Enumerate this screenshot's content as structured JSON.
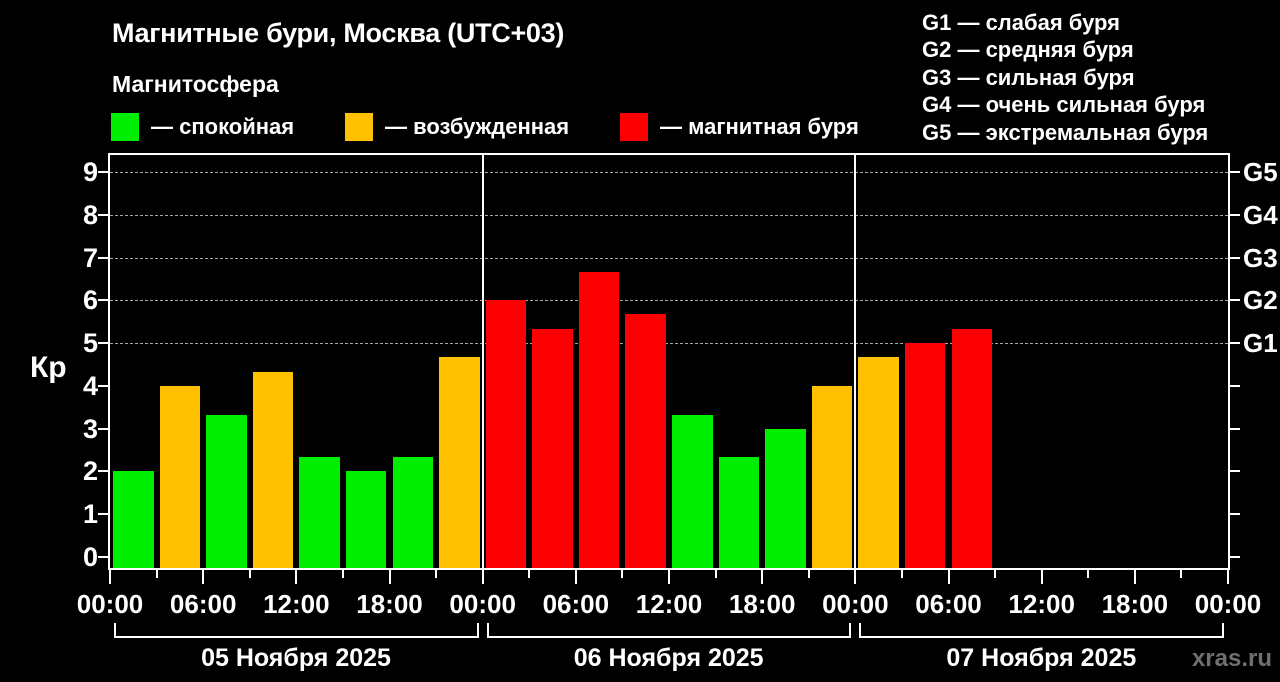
{
  "title": "Магнитные бури, Москва (UTC+03)",
  "subtitle": "Магнитосфера",
  "watermark": "xras.ru",
  "colors": {
    "quiet": "#00ef00",
    "unsettled": "#ffc000",
    "storm": "#fa0000",
    "axis": "#ffffff",
    "grid": "#a9a9a9",
    "watermark": "#6f6f6f",
    "background": "#000000"
  },
  "legend": [
    {
      "level": "quiet",
      "label": "— спокойная"
    },
    {
      "level": "unsettled",
      "label": "— возбужденная"
    },
    {
      "level": "storm",
      "label": "— магнитная буря"
    }
  ],
  "storm_scale": [
    {
      "label": "G1 — слабая буря"
    },
    {
      "label": "G2 — средняя буря"
    },
    {
      "label": "G3 — сильная буря"
    },
    {
      "label": "G4 — очень сильная буря"
    },
    {
      "label": "G5 — экстремальная буря"
    }
  ],
  "chart_data": {
    "type": "bar",
    "title": "Магнитные бури, Москва (UTC+03)",
    "ylabel": "Кр",
    "ylim": [
      0,
      9
    ],
    "yticks": [
      0,
      1,
      2,
      3,
      4,
      5,
      6,
      7,
      8,
      9
    ],
    "grid_levels": [
      5,
      6,
      7,
      8,
      9
    ],
    "grid": "dashed horizontal lines only at Kp 5-9",
    "legend_position": "top",
    "right_axis_labels": [
      {
        "kp": 5,
        "label": "G1"
      },
      {
        "kp": 6,
        "label": "G2"
      },
      {
        "kp": 7,
        "label": "G3"
      },
      {
        "kp": 8,
        "label": "G4"
      },
      {
        "kp": 9,
        "label": "G5"
      }
    ],
    "x_tick_labels": [
      "00:00",
      "06:00",
      "12:00",
      "18:00",
      "00:00",
      "06:00",
      "12:00",
      "18:00",
      "00:00",
      "06:00",
      "12:00",
      "18:00",
      "00:00"
    ],
    "hours_per_bar": 3,
    "slots_per_day": 8,
    "days": [
      {
        "date": "05 Ноября 2025",
        "bars": [
          {
            "kp": 2.0,
            "level": "quiet"
          },
          {
            "kp": 4.0,
            "level": "unsettled"
          },
          {
            "kp": 3.33,
            "level": "quiet"
          },
          {
            "kp": 4.33,
            "level": "unsettled"
          },
          {
            "kp": 2.33,
            "level": "quiet"
          },
          {
            "kp": 2.0,
            "level": "quiet"
          },
          {
            "kp": 2.33,
            "level": "quiet"
          },
          {
            "kp": 4.67,
            "level": "unsettled"
          }
        ]
      },
      {
        "date": "06 Ноября 2025",
        "bars": [
          {
            "kp": 6.0,
            "level": "storm"
          },
          {
            "kp": 5.33,
            "level": "storm"
          },
          {
            "kp": 6.67,
            "level": "storm"
          },
          {
            "kp": 5.67,
            "level": "storm"
          },
          {
            "kp": 3.33,
            "level": "quiet"
          },
          {
            "kp": 2.33,
            "level": "quiet"
          },
          {
            "kp": 3.0,
            "level": "quiet"
          },
          {
            "kp": 4.0,
            "level": "unsettled"
          }
        ]
      },
      {
        "date": "07 Ноября 2025",
        "bars": [
          {
            "kp": 4.67,
            "level": "unsettled"
          },
          {
            "kp": 5.0,
            "level": "storm"
          },
          {
            "kp": 5.33,
            "level": "storm"
          }
        ]
      }
    ]
  }
}
